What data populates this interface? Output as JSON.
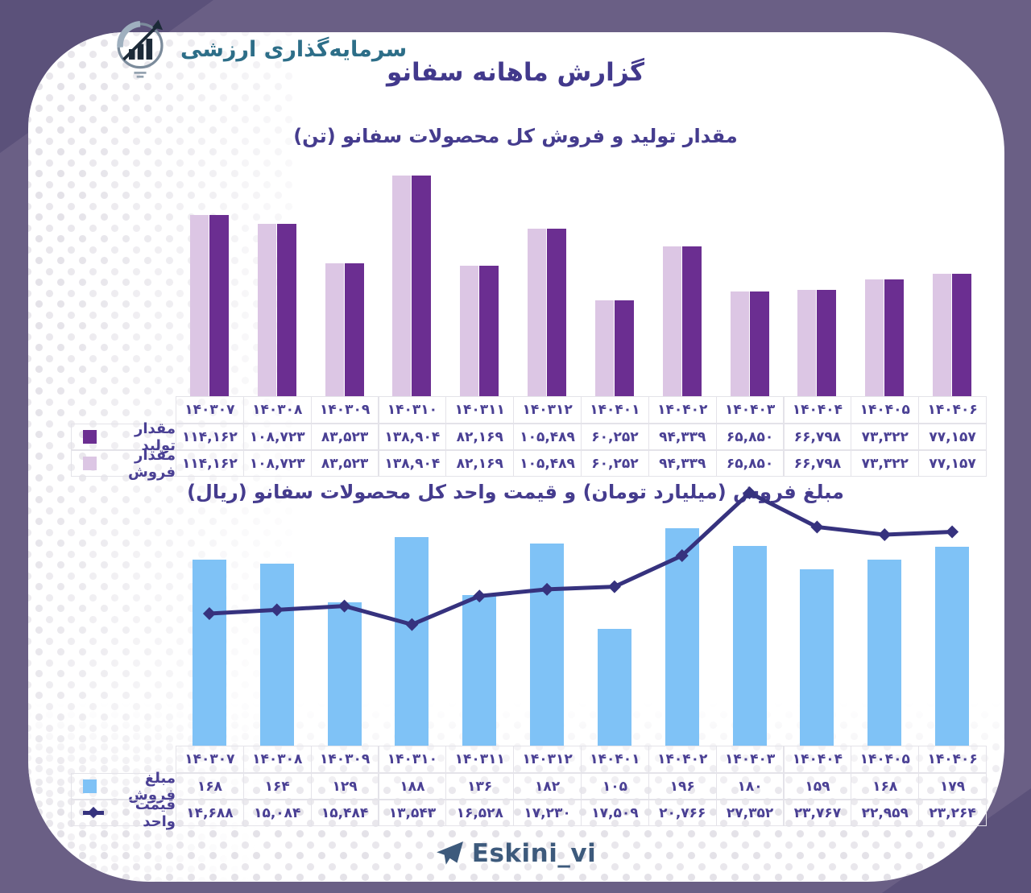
{
  "brand": {
    "name": "سرمایه‌گذاری ارزشی",
    "logo_icon": "growth-chart-logo"
  },
  "page": {
    "title": "گزارش ماهانه سفانو"
  },
  "footer": {
    "handle": "Eskini_vi",
    "icon": "telegram-icon"
  },
  "colors": {
    "background": "#6a5f85",
    "corner_triangle": "#5b517a",
    "card": "#ffffff",
    "title": "#42398c",
    "table_text": "#4a4094",
    "table_border": "#e4e3e9",
    "production_bar": "#6b2e91",
    "sales_qty_bar": "#dcc6e4",
    "sales_amount_bar": "#7fc2f6",
    "unit_price_line": "#36327e",
    "brand_text": "#2d6e88",
    "footer_text": "#3d5a7c"
  },
  "chart_data": [
    {
      "type": "bar",
      "title": "مقدار تولید و فروش کل محصولات سفانو (تن)",
      "categories": [
        "۱۴۰۳۰۷",
        "۱۴۰۳۰۸",
        "۱۴۰۳۰۹",
        "۱۴۰۳۱۰",
        "۱۴۰۳۱۱",
        "۱۴۰۳۱۲",
        "۱۴۰۴۰۱",
        "۱۴۰۴۰۲",
        "۱۴۰۴۰۳",
        "۱۴۰۴۰۴",
        "۱۴۰۴۰۵",
        "۱۴۰۴۰۶"
      ],
      "ylim": [
        0,
        138904
      ],
      "grid": false,
      "legend_position": "table-left",
      "series": [
        {
          "name": "مقدار تولید",
          "color": "#6b2e91",
          "values": [
            114162,
            108723,
            83523,
            138904,
            82169,
            105489,
            60252,
            94339,
            65850,
            66798,
            73322,
            77157
          ],
          "display": [
            "۱۱۴,۱۶۲",
            "۱۰۸,۷۲۳",
            "۸۳,۵۲۳",
            "۱۳۸,۹۰۴",
            "۸۲,۱۶۹",
            "۱۰۵,۴۸۹",
            "۶۰,۲۵۲",
            "۹۴,۳۳۹",
            "۶۵,۸۵۰",
            "۶۶,۷۹۸",
            "۷۳,۳۲۲",
            "۷۷,۱۵۷"
          ]
        },
        {
          "name": "مقدار فروش",
          "color": "#dcc6e4",
          "values": [
            114162,
            108723,
            83523,
            138904,
            82169,
            105489,
            60252,
            94339,
            65850,
            66798,
            73322,
            77157
          ],
          "display": [
            "۱۱۴,۱۶۲",
            "۱۰۸,۷۲۳",
            "۸۳,۵۲۳",
            "۱۳۸,۹۰۴",
            "۸۲,۱۶۹",
            "۱۰۵,۴۸۹",
            "۶۰,۲۵۲",
            "۹۴,۳۳۹",
            "۶۵,۸۵۰",
            "۶۶,۷۹۸",
            "۷۳,۳۲۲",
            "۷۷,۱۵۷"
          ]
        }
      ]
    },
    {
      "type": "bar+line",
      "title": "مبلغ فروش (میلیارد تومان) و قیمت واحد کل محصولات سفانو (ریال)",
      "categories": [
        "۱۴۰۳۰۷",
        "۱۴۰۳۰۸",
        "۱۴۰۳۰۹",
        "۱۴۰۳۱۰",
        "۱۴۰۳۱۱",
        "۱۴۰۳۱۲",
        "۱۴۰۴۰۱",
        "۱۴۰۴۰۲",
        "۱۴۰۴۰۳",
        "۱۴۰۴۰۴",
        "۱۴۰۴۰۵",
        "۱۴۰۴۰۶"
      ],
      "ylim_bar": [
        0,
        196
      ],
      "y2_range": [
        13000,
        28000
      ],
      "grid": false,
      "legend_position": "table-left",
      "series": [
        {
          "name": "مبلغ فروش",
          "kind": "bar",
          "color": "#7fc2f6",
          "values": [
            168,
            164,
            129,
            188,
            136,
            182,
            105,
            196,
            180,
            159,
            168,
            179
          ],
          "display": [
            "۱۶۸",
            "۱۶۴",
            "۱۲۹",
            "۱۸۸",
            "۱۳۶",
            "۱۸۲",
            "۱۰۵",
            "۱۹۶",
            "۱۸۰",
            "۱۵۹",
            "۱۶۸",
            "۱۷۹"
          ]
        },
        {
          "name": "قیمت واحد",
          "kind": "line",
          "color": "#36327e",
          "values": [
            14688,
            15084,
            15484,
            13543,
            16528,
            17230,
            17509,
            20766,
            27352,
            23767,
            22959,
            23264
          ],
          "display": [
            "۱۴,۶۸۸",
            "۱۵,۰۸۴",
            "۱۵,۴۸۴",
            "۱۳,۵۴۳",
            "۱۶,۵۲۸",
            "۱۷,۲۳۰",
            "۱۷,۵۰۹",
            "۲۰,۷۶۶",
            "۲۷,۳۵۲",
            "۲۳,۷۶۷",
            "۲۲,۹۵۹",
            "۲۳,۲۶۴"
          ]
        }
      ]
    }
  ]
}
